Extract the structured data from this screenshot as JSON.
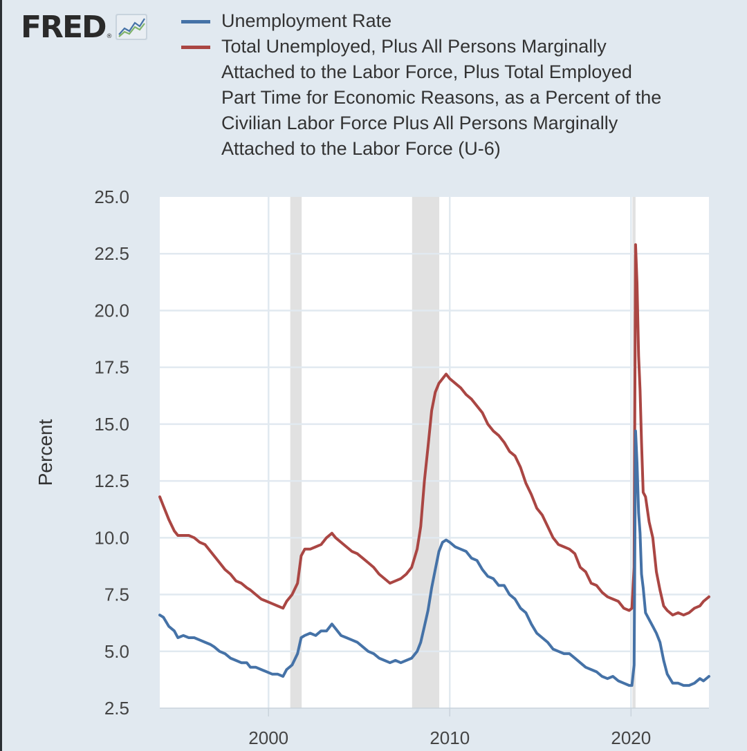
{
  "logo": {
    "text": "FRED",
    "icon": "line-graph-icon"
  },
  "colors": {
    "background": "#e1e9f0",
    "plot_background": "#ffffff",
    "grid": "#e1e9f0",
    "recession": "#e1e1e1",
    "series_blue": "#4572a7",
    "series_red": "#aa4643"
  },
  "chart_data": {
    "type": "line",
    "ylabel": "Percent",
    "xlabel": "",
    "ylim": [
      2.5,
      25.0
    ],
    "xlim": [
      1994.0,
      2024.3
    ],
    "y_ticks": [
      "25.0",
      "22.5",
      "20.0",
      "17.5",
      "15.0",
      "12.5",
      "10.0",
      "7.5",
      "5.0",
      "2.5"
    ],
    "x_ticks": [
      "2000",
      "2010",
      "2020"
    ],
    "grid": true,
    "legend_position": "top",
    "recessions": [
      [
        2001.2,
        2001.83
      ],
      [
        2007.92,
        2009.42
      ],
      [
        2020.08,
        2020.25
      ]
    ],
    "series": [
      {
        "name": "Unemployment Rate",
        "color": "#4572a7",
        "x": [
          1994.0,
          1994.2,
          1994.5,
          1994.8,
          1995.0,
          1995.3,
          1995.6,
          1995.9,
          1996.2,
          1996.5,
          1996.8,
          1997.0,
          1997.3,
          1997.6,
          1997.9,
          1998.2,
          1998.5,
          1998.8,
          1999.0,
          1999.3,
          1999.6,
          1999.9,
          2000.2,
          2000.5,
          2000.8,
          2001.0,
          2001.3,
          2001.6,
          2001.8,
          2002.0,
          2002.3,
          2002.6,
          2002.9,
          2003.2,
          2003.5,
          2003.7,
          2004.0,
          2004.3,
          2004.6,
          2004.9,
          2005.2,
          2005.5,
          2005.8,
          2006.1,
          2006.4,
          2006.7,
          2007.0,
          2007.3,
          2007.6,
          2007.9,
          2008.2,
          2008.4,
          2008.6,
          2008.8,
          2009.0,
          2009.2,
          2009.4,
          2009.6,
          2009.8,
          2010.0,
          2010.3,
          2010.6,
          2010.9,
          2011.2,
          2011.5,
          2011.8,
          2012.1,
          2012.4,
          2012.7,
          2013.0,
          2013.3,
          2013.6,
          2013.9,
          2014.2,
          2014.5,
          2014.8,
          2015.1,
          2015.4,
          2015.7,
          2016.0,
          2016.3,
          2016.6,
          2016.9,
          2017.2,
          2017.5,
          2017.8,
          2018.1,
          2018.4,
          2018.7,
          2019.0,
          2019.3,
          2019.6,
          2019.9,
          2020.05,
          2020.17,
          2020.25,
          2020.33,
          2020.42,
          2020.5,
          2020.58,
          2020.67,
          2020.8,
          2021.0,
          2021.2,
          2021.4,
          2021.6,
          2021.8,
          2022.0,
          2022.3,
          2022.6,
          2022.9,
          2023.2,
          2023.5,
          2023.8,
          2024.0,
          2024.3
        ],
        "values": [
          6.6,
          6.5,
          6.1,
          5.9,
          5.6,
          5.7,
          5.6,
          5.6,
          5.5,
          5.4,
          5.3,
          5.2,
          5.0,
          4.9,
          4.7,
          4.6,
          4.5,
          4.5,
          4.3,
          4.3,
          4.2,
          4.1,
          4.0,
          4.0,
          3.9,
          4.2,
          4.4,
          4.9,
          5.6,
          5.7,
          5.8,
          5.7,
          5.9,
          5.9,
          6.2,
          6.0,
          5.7,
          5.6,
          5.5,
          5.4,
          5.2,
          5.0,
          4.9,
          4.7,
          4.6,
          4.5,
          4.6,
          4.5,
          4.6,
          4.7,
          5.0,
          5.4,
          6.1,
          6.8,
          7.8,
          8.6,
          9.4,
          9.8,
          9.9,
          9.8,
          9.6,
          9.5,
          9.4,
          9.1,
          9.0,
          8.6,
          8.3,
          8.2,
          7.9,
          7.9,
          7.5,
          7.3,
          6.9,
          6.7,
          6.2,
          5.8,
          5.6,
          5.4,
          5.1,
          5.0,
          4.9,
          4.9,
          4.7,
          4.5,
          4.3,
          4.2,
          4.1,
          3.9,
          3.8,
          3.9,
          3.7,
          3.6,
          3.5,
          3.5,
          4.4,
          14.7,
          13.3,
          11.1,
          10.2,
          8.4,
          7.8,
          6.7,
          6.4,
          6.1,
          5.8,
          5.4,
          4.6,
          4.0,
          3.6,
          3.6,
          3.5,
          3.5,
          3.6,
          3.8,
          3.7,
          3.9
        ],
        "label": "Unemployment Rate"
      },
      {
        "name": "U-6",
        "color": "#aa4643",
        "x": [
          1994.0,
          1994.2,
          1994.5,
          1994.8,
          1995.0,
          1995.3,
          1995.6,
          1995.9,
          1996.2,
          1996.5,
          1996.8,
          1997.0,
          1997.3,
          1997.6,
          1997.9,
          1998.2,
          1998.5,
          1998.8,
          1999.0,
          1999.3,
          1999.6,
          1999.9,
          2000.2,
          2000.5,
          2000.8,
          2001.0,
          2001.3,
          2001.6,
          2001.8,
          2002.0,
          2002.3,
          2002.6,
          2002.9,
          2003.2,
          2003.5,
          2003.7,
          2004.0,
          2004.3,
          2004.6,
          2004.9,
          2005.2,
          2005.5,
          2005.8,
          2006.1,
          2006.4,
          2006.7,
          2007.0,
          2007.3,
          2007.6,
          2007.9,
          2008.2,
          2008.4,
          2008.6,
          2008.8,
          2009.0,
          2009.2,
          2009.4,
          2009.6,
          2009.8,
          2010.0,
          2010.3,
          2010.6,
          2010.9,
          2011.2,
          2011.5,
          2011.8,
          2012.1,
          2012.4,
          2012.7,
          2013.0,
          2013.3,
          2013.6,
          2013.9,
          2014.2,
          2014.5,
          2014.8,
          2015.1,
          2015.4,
          2015.7,
          2016.0,
          2016.3,
          2016.6,
          2016.9,
          2017.2,
          2017.5,
          2017.8,
          2018.1,
          2018.4,
          2018.7,
          2019.0,
          2019.3,
          2019.6,
          2019.9,
          2020.05,
          2020.17,
          2020.25,
          2020.33,
          2020.42,
          2020.5,
          2020.58,
          2020.67,
          2020.8,
          2021.0,
          2021.2,
          2021.4,
          2021.6,
          2021.8,
          2022.0,
          2022.3,
          2022.6,
          2022.9,
          2023.2,
          2023.5,
          2023.8,
          2024.0,
          2024.3
        ],
        "values": [
          11.8,
          11.4,
          10.8,
          10.3,
          10.1,
          10.1,
          10.1,
          10.0,
          9.8,
          9.7,
          9.4,
          9.2,
          8.9,
          8.6,
          8.4,
          8.1,
          8.0,
          7.8,
          7.7,
          7.5,
          7.3,
          7.2,
          7.1,
          7.0,
          6.9,
          7.2,
          7.5,
          8.0,
          9.2,
          9.5,
          9.5,
          9.6,
          9.7,
          10.0,
          10.2,
          10.0,
          9.8,
          9.6,
          9.4,
          9.3,
          9.1,
          8.9,
          8.7,
          8.4,
          8.2,
          8.0,
          8.1,
          8.2,
          8.4,
          8.7,
          9.5,
          10.5,
          12.5,
          14.0,
          15.6,
          16.4,
          16.8,
          17.0,
          17.2,
          17.0,
          16.8,
          16.6,
          16.3,
          16.1,
          15.8,
          15.5,
          15.0,
          14.7,
          14.5,
          14.2,
          13.8,
          13.6,
          13.1,
          12.4,
          11.9,
          11.3,
          11.0,
          10.5,
          10.0,
          9.7,
          9.6,
          9.5,
          9.3,
          8.7,
          8.5,
          8.0,
          7.9,
          7.6,
          7.4,
          7.3,
          7.2,
          6.9,
          6.8,
          6.9,
          8.7,
          22.9,
          21.2,
          18.0,
          16.5,
          14.2,
          12.0,
          11.8,
          10.7,
          10.0,
          8.5,
          7.7,
          7.0,
          6.8,
          6.6,
          6.7,
          6.6,
          6.7,
          6.9,
          7.0,
          7.2,
          7.4
        ],
        "label": "Total Unemployed, Plus All Persons Marginally Attached to the Labor Force, Plus Total Employed Part Time for Economic Reasons, as a Percent of the Civilian Labor Force Plus All Persons Marginally Attached to the Labor Force (U-6)"
      }
    ]
  }
}
